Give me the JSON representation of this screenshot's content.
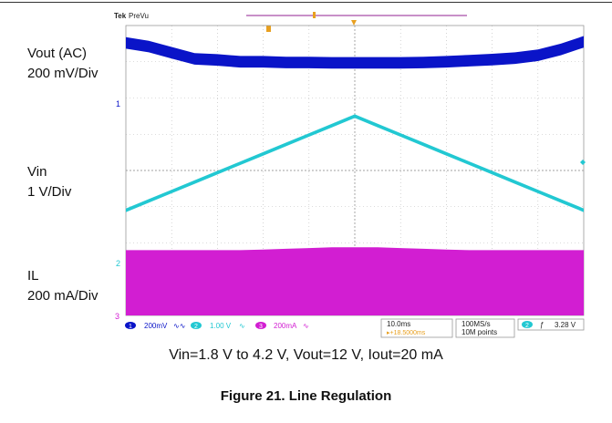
{
  "channel_labels": [
    {
      "name": "Vout (AC)",
      "scale": "200 mV/Div"
    },
    {
      "name": "Vin",
      "scale": "1 V/Div"
    },
    {
      "name": "IL",
      "scale": "200 mA/Div"
    }
  ],
  "caption": "Vin=1.8 V to 4.2 V, Vout=12 V, Iout=20 mA",
  "figure_title": "Figure 21. Line Regulation",
  "scope": {
    "brand": "Tek",
    "mode": "PreVu",
    "status_bar": {
      "ch1": {
        "num": "1",
        "text": "200mV",
        "coupling": "∿∿"
      },
      "ch2": {
        "num": "2",
        "text": "1.00 V",
        "suffix": "∿"
      },
      "ch3": {
        "num": "3",
        "text": "200mA",
        "suffix": "∿"
      },
      "timebase": "10.0ms",
      "delay": "▸+18.5000ms",
      "sample_rate": "100MS/s",
      "record_length": "10M points",
      "trigger_ch": "2",
      "trigger_slope": "ƒ",
      "trigger_level": "3.28 V"
    },
    "ref_markers": {
      "ch1": "1",
      "ch2": "2",
      "ch3": "3"
    },
    "colors": {
      "background": "#ffffff",
      "grid": "#b8b8b8",
      "ch1": "#0a14c8",
      "ch2": "#22c8d2",
      "ch3": "#d21ed2",
      "trigger": "#e8a020",
      "record_bar": "#c890c8"
    }
  },
  "chart_data": {
    "type": "line",
    "x_unit": "ms",
    "x_divisions": 10,
    "y_divisions": 8,
    "time_per_div_ms": 10.0,
    "x": [
      -50,
      -45,
      -40,
      -35,
      -30,
      -25,
      -20,
      -15,
      -10,
      -5,
      0,
      5,
      10,
      15,
      20,
      25,
      30,
      35,
      40,
      45,
      50
    ],
    "series": [
      {
        "name": "Vout (AC)",
        "scale": "200 mV/Div",
        "values_div": [
          3.52,
          3.42,
          3.25,
          3.08,
          3.05,
          3.0,
          3.0,
          2.98,
          2.98,
          2.97,
          2.97,
          2.97,
          2.97,
          2.98,
          3.0,
          3.03,
          3.06,
          3.1,
          3.18,
          3.34,
          3.55
        ],
        "band_div": 0.32
      },
      {
        "name": "Vin",
        "scale": "1 V/Div",
        "values_div": [
          -1.1,
          -0.84,
          -0.58,
          -0.32,
          -0.06,
          0.2,
          0.46,
          0.72,
          0.98,
          1.24,
          1.5,
          1.24,
          0.98,
          0.72,
          0.46,
          0.2,
          -0.06,
          -0.32,
          -0.58,
          -0.84,
          -1.1
        ],
        "band_div": 0.1
      },
      {
        "name": "IL",
        "scale": "200 mA/Div",
        "upper_div": [
          -2.2,
          -2.2,
          -2.2,
          -2.2,
          -2.2,
          -2.2,
          -2.18,
          -2.16,
          -2.14,
          -2.12,
          -2.12,
          -2.12,
          -2.14,
          -2.16,
          -2.18,
          -2.2,
          -2.2,
          -2.2,
          -2.2,
          -2.2,
          -2.2
        ],
        "lower_div": [
          -4.0,
          -4.0,
          -4.0,
          -4.0,
          -4.0,
          -4.0,
          -4.0,
          -4.0,
          -4.0,
          -4.0,
          -4.0,
          -4.0,
          -4.0,
          -4.0,
          -4.0,
          -4.0,
          -4.0,
          -4.0,
          -4.0,
          -4.0,
          -4.0
        ]
      }
    ],
    "grid": true
  }
}
